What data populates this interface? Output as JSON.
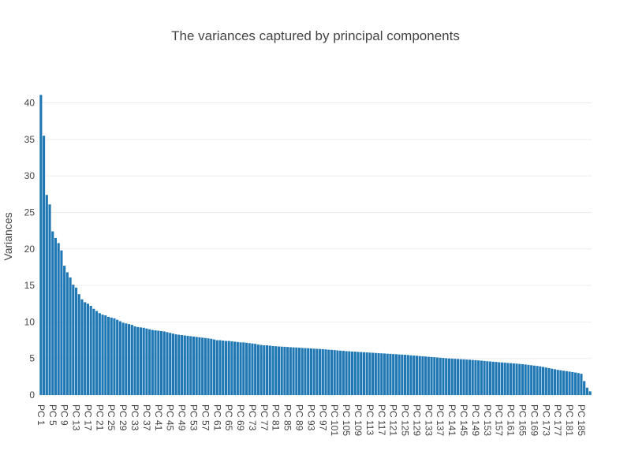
{
  "chart_data": {
    "type": "bar",
    "title": "The variances captured by principal components",
    "y_label": "Variances",
    "color": "#1f77b4",
    "grid": true,
    "ylim": [
      0,
      43.3
    ],
    "yticks": [
      0,
      5,
      10,
      15,
      20,
      25,
      30,
      35,
      40
    ],
    "categories": [
      "PC 1",
      null,
      null,
      null,
      "PC 5",
      null,
      null,
      null,
      "PC 9",
      null,
      null,
      null,
      "PC 13",
      null,
      null,
      null,
      "PC 17",
      null,
      null,
      null,
      "PC 21",
      null,
      null,
      null,
      "PC 25",
      null,
      null,
      null,
      "PC 29",
      null,
      null,
      null,
      "PC 33",
      null,
      null,
      null,
      "PC 37",
      null,
      null,
      null,
      "PC 41",
      null,
      null,
      null,
      "PC 45",
      null,
      null,
      null,
      "PC 49",
      null,
      null,
      null,
      "PC 53",
      null,
      null,
      null,
      "PC 57",
      null,
      null,
      null,
      "PC 61",
      null,
      null,
      null,
      "PC 65",
      null,
      null,
      null,
      "PC 69",
      null,
      null,
      null,
      "PC 73",
      null,
      null,
      null,
      "PC 77",
      null,
      null,
      null,
      "PC 81",
      null,
      null,
      null,
      "PC 85",
      null,
      null,
      null,
      "PC 89",
      null,
      null,
      null,
      "PC 93",
      null,
      null,
      null,
      "PC 97",
      null,
      null,
      null,
      "PC 101",
      null,
      null,
      null,
      "PC 105",
      null,
      null,
      null,
      "PC 109",
      null,
      null,
      null,
      "PC 113",
      null,
      null,
      null,
      "PC 117",
      null,
      null,
      null,
      "PC 121",
      null,
      null,
      null,
      "PC 125",
      null,
      null,
      null,
      "PC 129",
      null,
      null,
      null,
      "PC 133",
      null,
      null,
      null,
      "PC 137",
      null,
      null,
      null,
      "PC 141",
      null,
      null,
      null,
      "PC 145",
      null,
      null,
      null,
      "PC 149",
      null,
      null,
      null,
      "PC 153",
      null,
      null,
      null,
      "PC 157",
      null,
      null,
      null,
      "PC 161",
      null,
      null,
      null,
      "PC 165",
      null,
      null,
      null,
      "PC 169",
      null,
      null,
      null,
      "PC 173",
      null,
      null,
      null,
      "PC 177",
      null,
      null,
      null,
      "PC 181",
      null,
      null,
      null,
      "PC 185",
      null,
      null,
      null
    ],
    "values": [
      41.1,
      35.5,
      27.4,
      26.1,
      22.4,
      21.5,
      20.8,
      19.8,
      17.7,
      16.8,
      16.1,
      15.1,
      14.7,
      13.8,
      13.1,
      12.7,
      12.5,
      12.2,
      11.8,
      11.5,
      11.2,
      11.0,
      10.9,
      10.7,
      10.6,
      10.5,
      10.3,
      10.1,
      9.9,
      9.8,
      9.7,
      9.6,
      9.4,
      9.3,
      9.25,
      9.2,
      9.1,
      9.0,
      8.9,
      8.85,
      8.8,
      8.75,
      8.7,
      8.6,
      8.5,
      8.4,
      8.3,
      8.25,
      8.2,
      8.15,
      8.1,
      8.05,
      8.0,
      7.95,
      7.9,
      7.85,
      7.8,
      7.75,
      7.7,
      7.6,
      7.5,
      7.5,
      7.45,
      7.4,
      7.4,
      7.35,
      7.3,
      7.25,
      7.2,
      7.2,
      7.15,
      7.1,
      7.05,
      7.0,
      6.9,
      6.85,
      6.8,
      6.8,
      6.75,
      6.7,
      6.67,
      6.64,
      6.62,
      6.6,
      6.57,
      6.54,
      6.52,
      6.5,
      6.47,
      6.44,
      6.42,
      6.4,
      6.37,
      6.34,
      6.32,
      6.3,
      6.27,
      6.24,
      6.2,
      6.17,
      6.14,
      6.1,
      6.07,
      6.04,
      6.0,
      5.98,
      5.95,
      5.93,
      5.9,
      5.88,
      5.85,
      5.83,
      5.8,
      5.78,
      5.75,
      5.73,
      5.7,
      5.68,
      5.65,
      5.63,
      5.6,
      5.58,
      5.55,
      5.53,
      5.5,
      5.47,
      5.43,
      5.4,
      5.37,
      5.33,
      5.3,
      5.27,
      5.23,
      5.2,
      5.17,
      5.13,
      5.1,
      5.07,
      5.03,
      5.0,
      4.98,
      4.95,
      4.93,
      4.9,
      4.88,
      4.85,
      4.83,
      4.8,
      4.77,
      4.73,
      4.7,
      4.66,
      4.62,
      4.59,
      4.55,
      4.52,
      4.48,
      4.45,
      4.42,
      4.38,
      4.35,
      4.32,
      4.29,
      4.25,
      4.22,
      4.17,
      4.12,
      4.07,
      4.02,
      3.97,
      3.92,
      3.84,
      3.76,
      3.68,
      3.6,
      3.52,
      3.44,
      3.38,
      3.32,
      3.26,
      3.2,
      3.14,
      3.07,
      3.0,
      2.9,
      1.9,
      1.0,
      0.5
    ]
  }
}
